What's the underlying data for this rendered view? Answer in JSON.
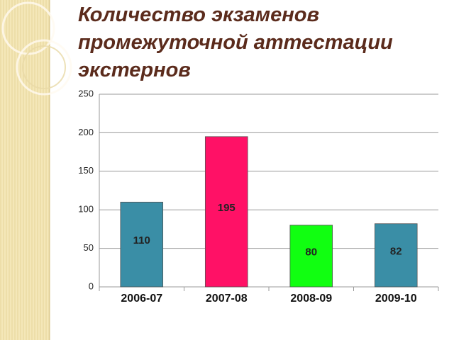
{
  "chart_data": {
    "type": "bar",
    "title": "Количество экзаменов промежуточной аттестации экстернов",
    "categories": [
      "2006-07",
      "2007-08",
      "2008-09",
      "2009-10"
    ],
    "values": [
      110,
      195,
      80,
      82
    ],
    "colors": [
      "#3a8ea6",
      "#ff1166",
      "#11ff11",
      "#3a8ea6"
    ],
    "ylim": [
      0,
      250
    ],
    "yticks": [
      0,
      50,
      100,
      150,
      200,
      250
    ],
    "grid": true
  }
}
